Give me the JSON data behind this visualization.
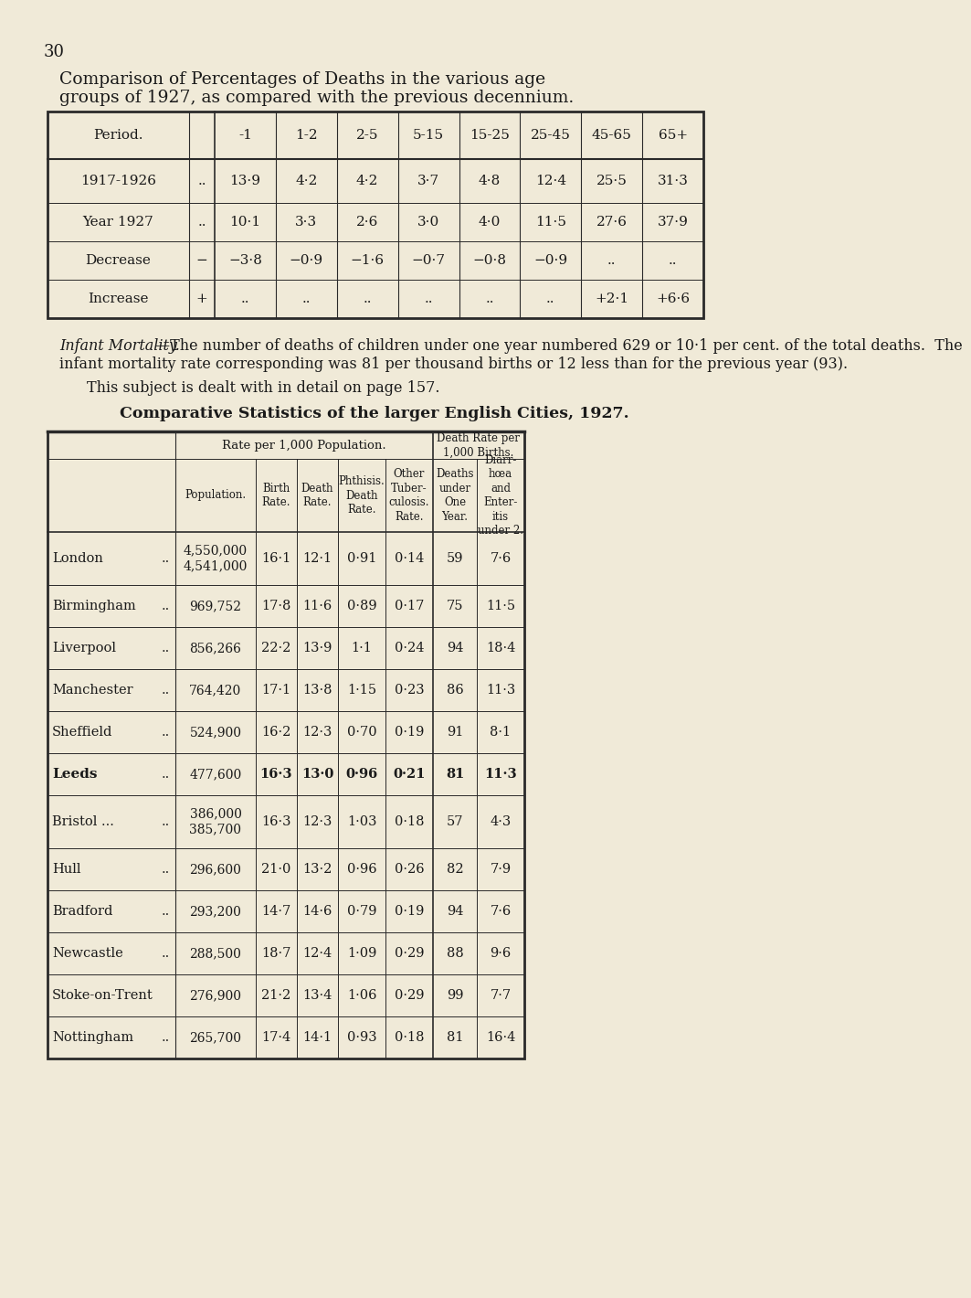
{
  "bg_color": "#f0ead8",
  "page_number": "30",
  "title_line1": "Comparison of Percentages of Deaths in the various age",
  "title_line2": "groups of 1927, as compared with the previous decennium.",
  "table1_headers": [
    "-1",
    "1-2",
    "2-5",
    "5-15",
    "15-25",
    "25-45",
    "45-65",
    "65+"
  ],
  "table1_col0_header": "Period.",
  "table1_rows": [
    [
      "1917-1926",
      "..",
      "13·9",
      "4·2",
      "4·2",
      "3·7",
      "4·8",
      "12·4",
      "25·5",
      "31·3"
    ],
    [
      "Year 1927",
      "..",
      "10·1",
      "3·3",
      "2·6",
      "3·0",
      "4·0",
      "11·5",
      "27·6",
      "37·9"
    ],
    [
      "Decrease",
      "−",
      "−3·8",
      "−0·9",
      "−1·6",
      "−0·7",
      "−0·8",
      "−0·9",
      "..",
      ".."
    ],
    [
      "Increase",
      "+",
      "..",
      "..",
      "..",
      "..",
      "..",
      "..",
      "+2·1",
      "+6·6"
    ]
  ],
  "infant_para": "Infant Mortality.—The number of deaths of children under one year numbered 629 or 10·1 per cent. of the total deaths.  The infant mortality rate corresponding was 81 per thousand births or 12 less than for the previous year (93).",
  "infant_para2": "This subject is dealt with in detail on page 157.",
  "table2_title": "Comparative Statistics of the larger English Cities, 1927.",
  "table2_header_group1": "Rate per 1,000 Population.",
  "table2_header_group2": "Death Rate per\n1,000 Births.",
  "table2_col_headers": [
    "Population.",
    "Birth\nRate.",
    "Death\nRate.",
    "Phthisis.\nDeath\nRate.",
    "Other\nTuber-\nculosis.\nRate.",
    "Deaths\nunder\nOne\nYear.",
    "Diarr-\nhœa\nand\nEnter-\nitis\nunder 2."
  ],
  "table2_rows": [
    [
      "London",
      "..",
      "4,550,000\n4,541,000",
      "16·1",
      "12·1",
      "0·91",
      "0·14",
      "59",
      "7·6"
    ],
    [
      "Birmingham",
      "..",
      "969,752",
      "17·8",
      "11·6",
      "0·89",
      "0·17",
      "75",
      "11·5"
    ],
    [
      "Liverpool",
      "..",
      "856,266",
      "22·2",
      "13·9",
      "1·1",
      "0·24",
      "94",
      "18·4"
    ],
    [
      "Manchester",
      "..",
      "764,420",
      "17·1",
      "13·8",
      "1·15",
      "0·23",
      "86",
      "11·3"
    ],
    [
      "Sheffield",
      "..",
      "524,900",
      "16·2",
      "12·3",
      "0·70",
      "0·19",
      "91",
      "8·1"
    ],
    [
      "Leeds",
      "..",
      "477,600",
      "16·3",
      "13·0",
      "0·96",
      "0·21",
      "81",
      "11·3"
    ],
    [
      "Bristol ...",
      "..",
      "386,000\n385,700",
      "16·3",
      "12·3",
      "1·03",
      "0·18",
      "57",
      "4·3"
    ],
    [
      "Hull",
      "..",
      "296,600",
      "21·0",
      "13·2",
      "0·96",
      "0·26",
      "82",
      "7·9"
    ],
    [
      "Bradford",
      "..",
      "293,200",
      "14·7",
      "14·6",
      "0·79",
      "0·19",
      "94",
      "7·6"
    ],
    [
      "Newcastle",
      "..",
      "288,500",
      "18·7",
      "12·4",
      "1·09",
      "0·29",
      "88",
      "9·6"
    ],
    [
      "Stoke-on-Trent",
      "",
      "276,900",
      "21·2",
      "13·4",
      "1·06",
      "0·29",
      "99",
      "7·7"
    ],
    [
      "Nottingham",
      "..",
      "265,700",
      "17·4",
      "14·1",
      "0·93",
      "0·18",
      "81",
      "16·4"
    ]
  ],
  "leeds_bold": true
}
